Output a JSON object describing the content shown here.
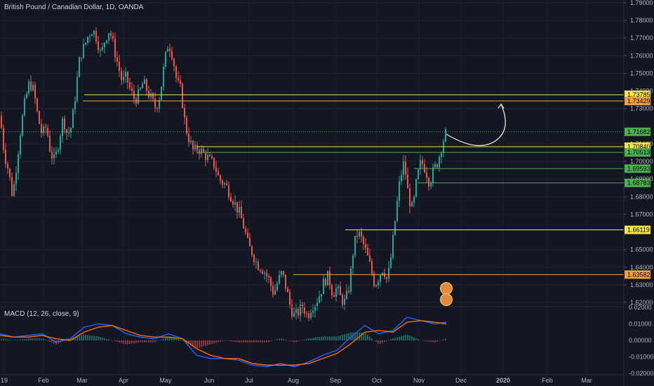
{
  "header": {
    "title": "British Pound / Canadian Dollar, 1D, OANDA"
  },
  "macd": {
    "label": "MACD (12, 26, close, 9)"
  },
  "colors": {
    "background": "#131722",
    "grid": "#1e222d",
    "up_candle": "#26a69a",
    "down_candle": "#ef5350",
    "yellow_line": "#f5e642",
    "orange_line": "#f0a33c",
    "green_line": "#4caf50",
    "macd_line": "#2962ff",
    "signal_line": "#ff6d00",
    "axis_text": "#b2b5be"
  },
  "chart_data": [
    {
      "type": "candlestick",
      "title": "British Pound / Canadian Dollar, 1D, OANDA",
      "ylim": [
        1.618,
        1.793
      ],
      "y_ticks": [
        "1.79000",
        "1.78000",
        "1.77000",
        "1.76000",
        "1.75000",
        "1.74000",
        "1.73000",
        "1.71000",
        "1.70000",
        "1.69000",
        "1.68000",
        "1.67000",
        "1.65000",
        "1.64000",
        "1.63000",
        "1.62000"
      ],
      "x_ticks": [
        "19",
        "Feb",
        "Mar",
        "Apr",
        "May",
        "Jun",
        "Jul",
        "Aug",
        "Sep",
        "Oct",
        "Nov",
        "Dec",
        "2020",
        "Feb",
        "Mar"
      ],
      "close_path": [
        [
          0,
          1.726
        ],
        [
          6,
          1.705
        ],
        [
          12,
          1.695
        ],
        [
          18,
          1.68
        ],
        [
          24,
          1.7
        ],
        [
          30,
          1.72
        ],
        [
          36,
          1.735
        ],
        [
          42,
          1.745
        ],
        [
          48,
          1.74
        ],
        [
          54,
          1.725
        ],
        [
          60,
          1.715
        ],
        [
          66,
          1.72
        ],
        [
          72,
          1.705
        ],
        [
          78,
          1.7
        ],
        [
          84,
          1.712
        ],
        [
          90,
          1.725
        ],
        [
          96,
          1.715
        ],
        [
          102,
          1.72
        ],
        [
          108,
          1.74
        ],
        [
          114,
          1.76
        ],
        [
          120,
          1.765
        ],
        [
          126,
          1.772
        ],
        [
          132,
          1.775
        ],
        [
          138,
          1.77
        ],
        [
          144,
          1.76
        ],
        [
          150,
          1.77
        ],
        [
          156,
          1.775
        ],
        [
          162,
          1.765
        ],
        [
          168,
          1.755
        ],
        [
          174,
          1.745
        ],
        [
          180,
          1.748
        ],
        [
          186,
          1.74
        ],
        [
          192,
          1.735
        ],
        [
          198,
          1.738
        ],
        [
          204,
          1.745
        ],
        [
          210,
          1.74
        ],
        [
          216,
          1.735
        ],
        [
          222,
          1.73
        ],
        [
          228,
          1.738
        ],
        [
          234,
          1.755
        ],
        [
          240,
          1.768
        ],
        [
          246,
          1.76
        ],
        [
          252,
          1.745
        ],
        [
          258,
          1.74
        ],
        [
          264,
          1.72
        ],
        [
          270,
          1.712
        ],
        [
          276,
          1.705
        ],
        [
          282,
          1.708
        ],
        [
          288,
          1.705
        ],
        [
          294,
          1.703
        ],
        [
          300,
          1.7
        ],
        [
          306,
          1.698
        ],
        [
          312,
          1.69
        ],
        [
          318,
          1.688
        ],
        [
          324,
          1.685
        ],
        [
          330,
          1.68
        ],
        [
          336,
          1.675
        ],
        [
          342,
          1.67
        ],
        [
          348,
          1.662
        ],
        [
          354,
          1.652
        ],
        [
          360,
          1.648
        ],
        [
          366,
          1.642
        ],
        [
          372,
          1.64
        ],
        [
          378,
          1.637
        ],
        [
          384,
          1.632
        ],
        [
          390,
          1.625
        ],
        [
          396,
          1.632
        ],
        [
          402,
          1.637
        ],
        [
          408,
          1.628
        ],
        [
          414,
          1.617
        ],
        [
          420,
          1.612
        ],
        [
          426,
          1.615
        ],
        [
          432,
          1.618
        ],
        [
          438,
          1.612
        ],
        [
          444,
          1.618
        ],
        [
          450,
          1.62
        ],
        [
          456,
          1.625
        ],
        [
          462,
          1.632
        ],
        [
          468,
          1.635
        ],
        [
          474,
          1.625
        ],
        [
          480,
          1.628
        ],
        [
          486,
          1.622
        ],
        [
          492,
          1.62
        ],
        [
          498,
          1.63
        ],
        [
          504,
          1.652
        ],
        [
          510,
          1.66
        ],
        [
          516,
          1.655
        ],
        [
          522,
          1.648
        ],
        [
          528,
          1.64
        ],
        [
          534,
          1.63
        ],
        [
          540,
          1.635
        ],
        [
          546,
          1.64
        ],
        [
          552,
          1.632
        ],
        [
          558,
          1.648
        ],
        [
          564,
          1.67
        ],
        [
          570,
          1.69
        ],
        [
          576,
          1.7
        ],
        [
          582,
          1.68
        ],
        [
          588,
          1.672
        ],
        [
          594,
          1.69
        ],
        [
          600,
          1.7
        ],
        [
          606,
          1.696
        ],
        [
          612,
          1.688
        ],
        [
          618,
          1.695
        ],
        [
          624,
          1.7
        ],
        [
          630,
          1.71
        ],
        [
          636,
          1.717
        ]
      ],
      "horizontal_levels": [
        {
          "label": "1.73785",
          "value": 1.73785,
          "color": "#f5e642",
          "x_start": 120
        },
        {
          "label": "1.73429",
          "value": 1.73429,
          "color": "#f0a33c",
          "x_start": 118
        },
        {
          "label": "1.71682",
          "value": 1.71682,
          "color": "#4caf50",
          "x_start": 0,
          "style": "dotted"
        },
        {
          "label": "1.70840",
          "value": 1.7084,
          "color": "#f5e642",
          "x_start": 280
        },
        {
          "label": "1.70513",
          "value": 1.70513,
          "color": "#4caf50",
          "x_start": 280
        },
        {
          "label": "1.69593",
          "value": 1.69593,
          "color": "#4caf50",
          "x_start": 590
        },
        {
          "label": "1.68783",
          "value": 1.68783,
          "color": "#4caf50",
          "x_start": 595
        },
        {
          "label": "1.66119",
          "value": 1.66119,
          "color": "#f5e642",
          "x_start": 492
        },
        {
          "label": "1.63582",
          "value": 1.63582,
          "color": "#f0a33c",
          "x_start": 418
        }
      ],
      "projection_arrow": {
        "from": [
          636,
          1.7155
        ],
        "via": [
          680,
          1.709
        ],
        "to": [
          714,
          1.7325
        ]
      }
    },
    {
      "type": "line",
      "title": "MACD (12, 26, close, 9)",
      "ylim": [
        -0.021,
        0.021
      ],
      "y_ticks": [
        "0.02000",
        "0.01000",
        "0.00000",
        "-0.01000",
        "-0.02000"
      ],
      "series": [
        {
          "name": "MACD",
          "values": [
            [
              0,
              0.004
            ],
            [
              20,
              0.002
            ],
            [
              40,
              0.003
            ],
            [
              60,
              0.004
            ],
            [
              80,
              -0.001
            ],
            [
              100,
              0.001
            ],
            [
              120,
              0.008
            ],
            [
              140,
              0.01
            ],
            [
              160,
              0.009
            ],
            [
              180,
              0.004
            ],
            [
              200,
              0.002
            ],
            [
              220,
              0.001
            ],
            [
              240,
              0.004
            ],
            [
              260,
              0.001
            ],
            [
              280,
              -0.009
            ],
            [
              300,
              -0.011
            ],
            [
              320,
              -0.011
            ],
            [
              340,
              -0.012
            ],
            [
              360,
              -0.015
            ],
            [
              380,
              -0.016
            ],
            [
              400,
              -0.014
            ],
            [
              420,
              -0.016
            ],
            [
              440,
              -0.013
            ],
            [
              460,
              -0.009
            ],
            [
              480,
              -0.006
            ],
            [
              500,
              0.002
            ],
            [
              520,
              0.009
            ],
            [
              540,
              0.004
            ],
            [
              560,
              0.006
            ],
            [
              580,
              0.014
            ],
            [
              600,
              0.012
            ],
            [
              620,
              0.01
            ],
            [
              636,
              0.011
            ]
          ]
        },
        {
          "name": "Signal",
          "values": [
            [
              0,
              0.003
            ],
            [
              20,
              0.002
            ],
            [
              40,
              0.002
            ],
            [
              60,
              0.003
            ],
            [
              80,
              0.001
            ],
            [
              100,
              0.0
            ],
            [
              120,
              0.005
            ],
            [
              140,
              0.008
            ],
            [
              160,
              0.009
            ],
            [
              180,
              0.006
            ],
            [
              200,
              0.003
            ],
            [
              220,
              0.002
            ],
            [
              240,
              0.002
            ],
            [
              260,
              0.001
            ],
            [
              280,
              -0.005
            ],
            [
              300,
              -0.009
            ],
            [
              320,
              -0.011
            ],
            [
              340,
              -0.011
            ],
            [
              360,
              -0.014
            ],
            [
              380,
              -0.015
            ],
            [
              400,
              -0.015
            ],
            [
              420,
              -0.015
            ],
            [
              440,
              -0.014
            ],
            [
              460,
              -0.011
            ],
            [
              480,
              -0.008
            ],
            [
              500,
              -0.002
            ],
            [
              520,
              0.005
            ],
            [
              540,
              0.006
            ],
            [
              560,
              0.005
            ],
            [
              580,
              0.011
            ],
            [
              600,
              0.012
            ],
            [
              620,
              0.011
            ],
            [
              636,
              0.01
            ]
          ]
        }
      ]
    }
  ]
}
